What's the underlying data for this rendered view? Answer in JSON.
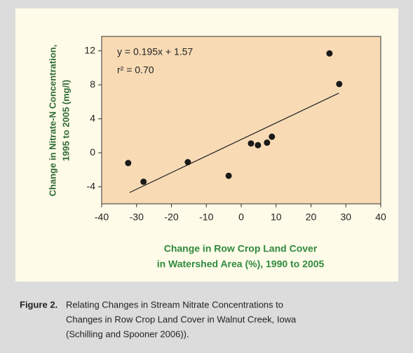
{
  "chart_data": {
    "type": "scatter",
    "y_label_lines": [
      "Change in Nitrate-N Concentration,",
      "1995 to 2005 (mg/l)"
    ],
    "x_label_lines": [
      "Change in Row Crop Land Cover",
      "in Watershed Area (%), 1990 to 2005"
    ],
    "annotations": [
      "y = 0.195x + 1.57",
      "r² = 0.70"
    ],
    "x": [
      -32.4,
      -28,
      -15.3,
      -3.6,
      2.8,
      4.8,
      7.4,
      8.8,
      25.3,
      28.1
    ],
    "values": [
      -1.2,
      -3.4,
      -1.1,
      -2.7,
      1.1,
      0.9,
      1.2,
      1.9,
      11.7,
      8.1
    ],
    "color": "#1a1a1a",
    "trend_line": {
      "x": [
        -32,
        28
      ],
      "y": [
        -4.67,
        7.03
      ]
    },
    "xlim": [
      -40,
      40
    ],
    "ylim": [
      -6,
      13.7
    ],
    "xticks": [
      -40,
      -30,
      -20,
      -10,
      0,
      10,
      20,
      30,
      40
    ],
    "yticks": [
      -4,
      0,
      4,
      8,
      12
    ],
    "plot_color": "#f8dbb5"
  },
  "caption": {
    "label": "Figure 2.",
    "lines": [
      "Relating Changes in Stream Nitrate Concentrations to",
      "Changes in Row Crop Land Cover in Walnut Creek, Iowa",
      "(Schilling and Spooner 2006))."
    ]
  }
}
